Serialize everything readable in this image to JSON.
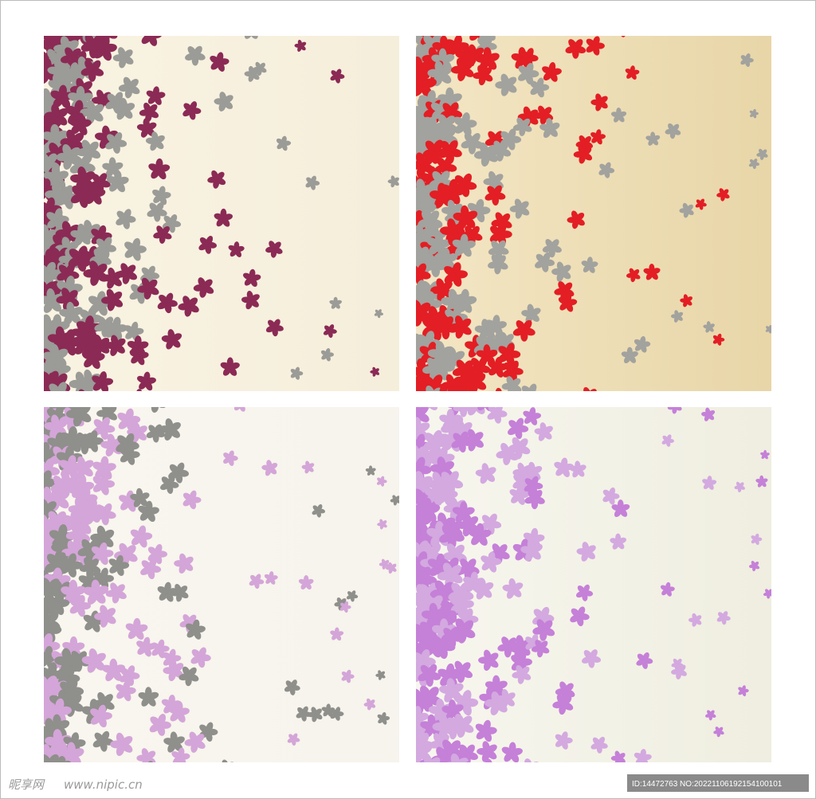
{
  "watermark": {
    "logo": "昵享网",
    "url": "www.nipic.cn"
  },
  "image_id": "ID:14472763 NO:20221106192154100101"
}
